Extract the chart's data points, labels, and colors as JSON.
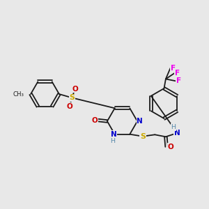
{
  "bg_color": "#e8e8e8",
  "bond_color": "#1a1a1a",
  "atom_colors": {
    "N": "#0000cc",
    "O": "#cc0000",
    "S": "#ccaa00",
    "F": "#ee00ee",
    "H": "#5588aa",
    "C": "#1a1a1a"
  },
  "figsize": [
    3.0,
    3.0
  ],
  "dpi": 100
}
